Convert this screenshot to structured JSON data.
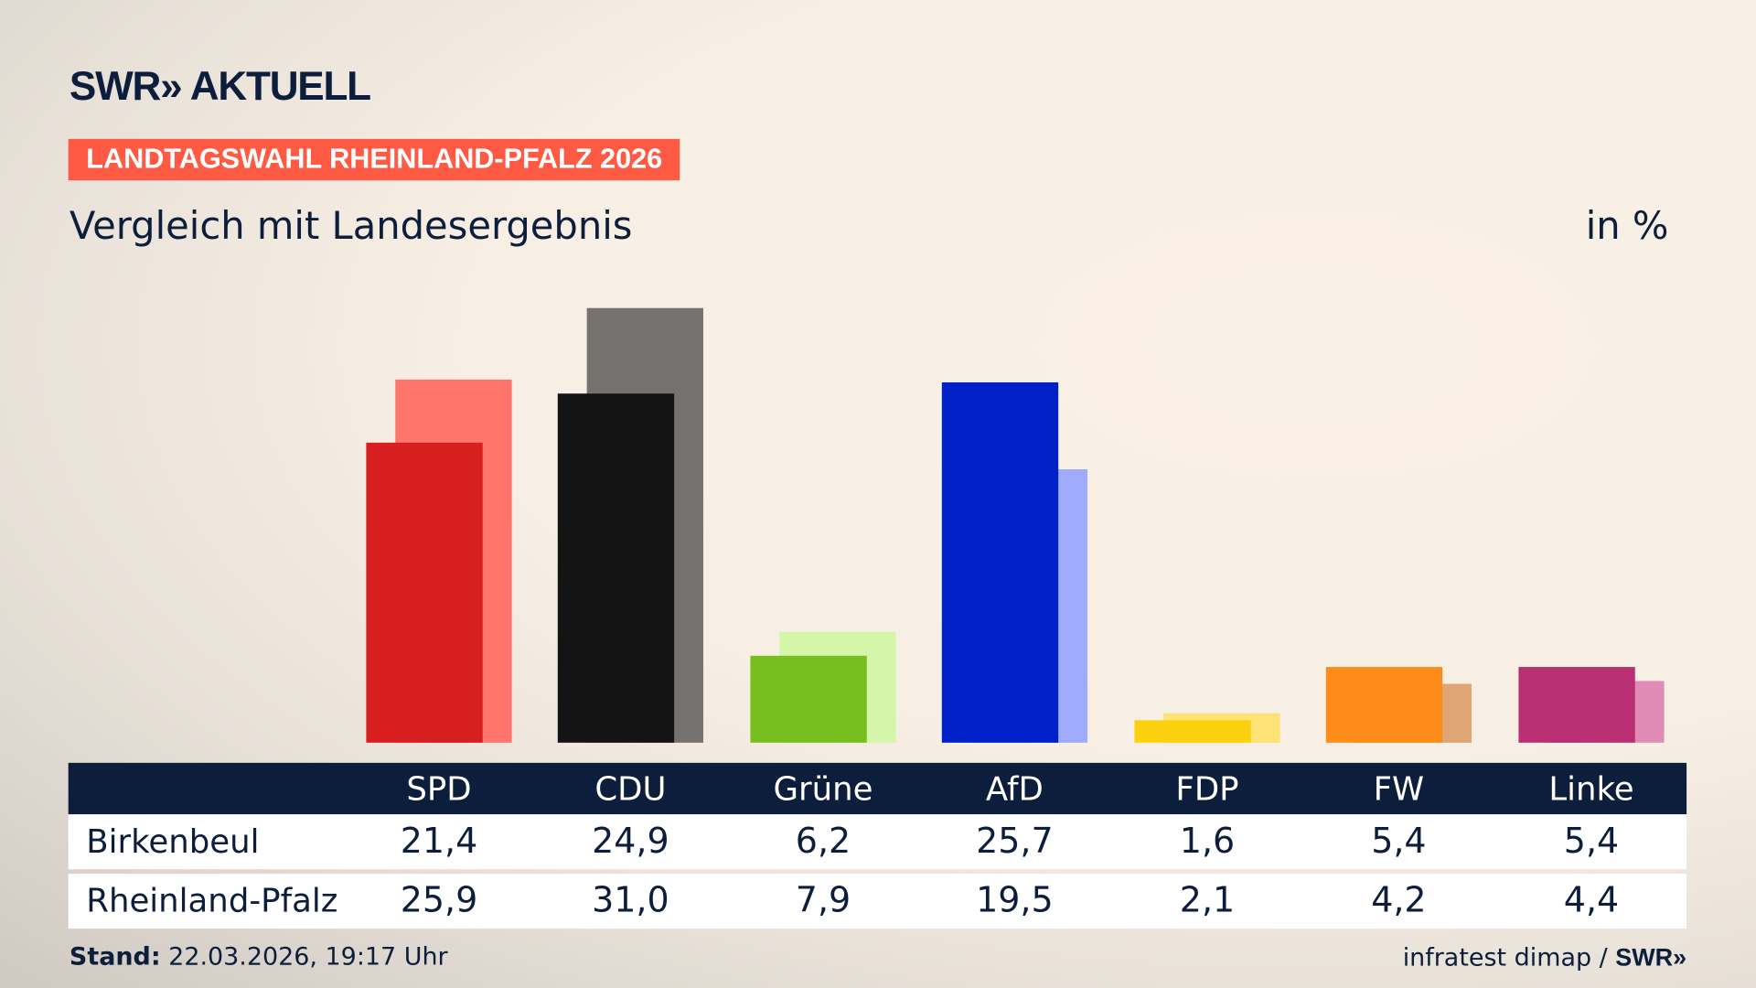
{
  "header": {
    "logo": "SWR» AKTUELL",
    "badge": "LANDTAGSWAHL RHEINLAND-PFALZ 2026",
    "subtitle": "Vergleich mit Landesergebnis",
    "unit": "in %"
  },
  "chart_data": {
    "type": "bar",
    "categories": [
      "SPD",
      "CDU",
      "Grüne",
      "AfD",
      "FDP",
      "FW",
      "Linke"
    ],
    "series": [
      {
        "name": "Birkenbeul",
        "values": [
          21.4,
          24.9,
          6.2,
          25.7,
          1.6,
          5.4,
          5.4
        ],
        "labels": [
          "21,4",
          "24,9",
          "6,2",
          "25,7",
          "1,6",
          "5,4",
          "5,4"
        ],
        "colors": [
          "#d81f1f",
          "#141414",
          "#78be1e",
          "#0021c8",
          "#fdd00e",
          "#fd8c1a",
          "#b92f74"
        ]
      },
      {
        "name": "Rheinland-Pfalz",
        "values": [
          25.9,
          31.0,
          7.9,
          19.5,
          2.1,
          4.2,
          4.4
        ],
        "labels": [
          "25,9",
          "31,0",
          "7,9",
          "19,5",
          "2,1",
          "4,2",
          "4,4"
        ],
        "colors": [
          "#ff756c",
          "#767270",
          "#d5f6a9",
          "#9eabfe",
          "#fde376",
          "#e0a574",
          "#e08bb6"
        ]
      }
    ],
    "ylim": [
      0,
      31
    ],
    "grid": false
  },
  "footer": {
    "stand_label": "Stand:",
    "stand_value": " 22.03.2026, 19:17 Uhr",
    "source": "infratest dimap / ",
    "source_logo": "SWR»"
  }
}
